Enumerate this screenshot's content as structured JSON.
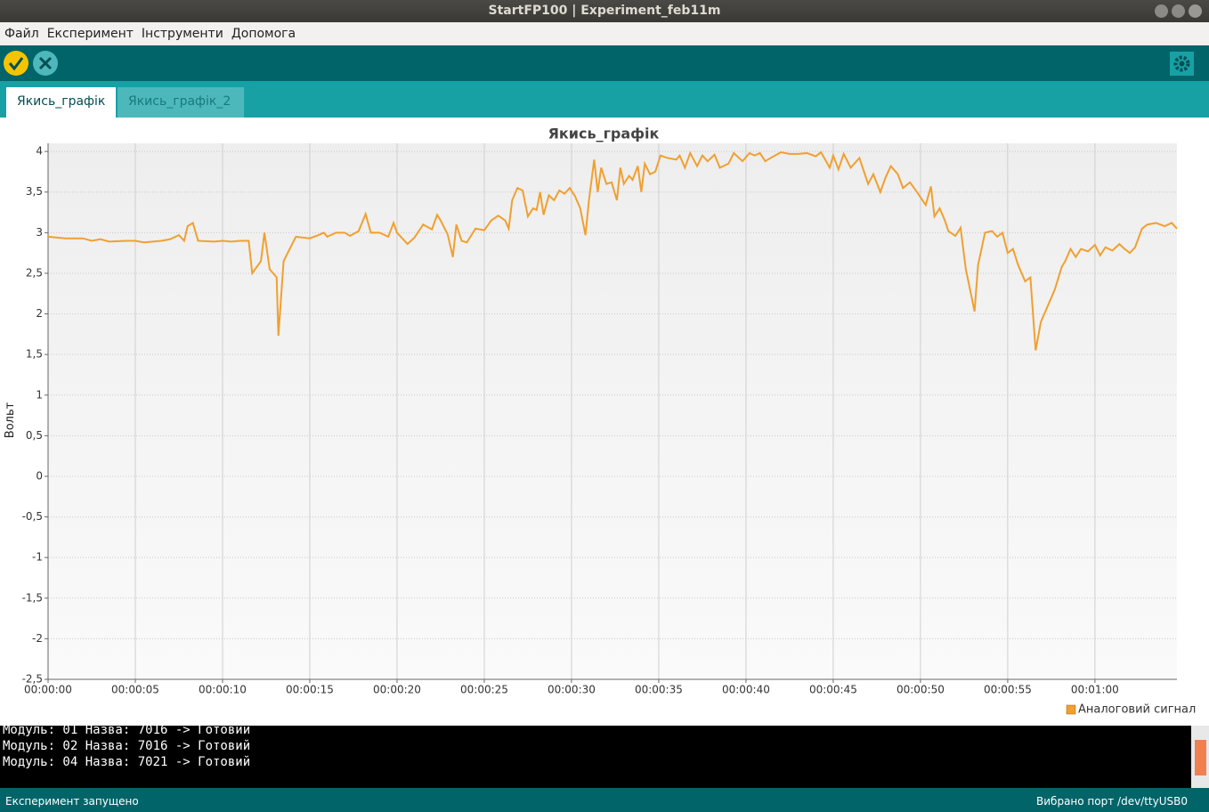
{
  "window": {
    "title": "StartFP100 | Experiment_feb11m"
  },
  "menu": [
    "Файл",
    "Експеримент",
    "Інструменти",
    "Допомога"
  ],
  "tabs": [
    "Якись_графік",
    "Якись_графік_2"
  ],
  "chart_data": {
    "type": "line",
    "title": "Якись_графік",
    "y_label": "Вольт",
    "x": [
      0,
      1,
      2,
      2.5,
      3,
      3.5,
      4.5,
      5,
      5.5,
      6.5,
      7,
      7.5,
      7.8,
      8,
      8.3,
      8.6,
      9.5,
      10,
      10.5,
      11,
      11.5,
      11.7,
      12.2,
      12.4,
      12.7,
      13.1,
      13.2,
      13.5,
      14.2,
      15,
      15.5,
      15.8,
      16,
      16.5,
      17,
      17.3,
      17.8,
      18.2,
      18.5,
      19,
      19.5,
      19.8,
      20,
      20.6,
      21,
      21.5,
      22,
      22.3,
      22.5,
      22.9,
      23.2,
      23.4,
      23.7,
      24,
      24.5,
      25,
      25.4,
      25.8,
      26.2,
      26.4,
      26.6,
      26.9,
      27.2,
      27.5,
      27.8,
      28,
      28.2,
      28.4,
      28.7,
      29,
      29.3,
      29.6,
      29.9,
      30.2,
      30.5,
      30.8,
      31,
      31.3,
      31.5,
      31.7,
      32,
      32.3,
      32.6,
      32.8,
      33,
      33.3,
      33.5,
      33.8,
      34,
      34.2,
      34.5,
      34.8,
      35.1,
      35.5,
      36,
      36.2,
      36.5,
      36.8,
      37.2,
      37.5,
      37.8,
      38.2,
      38.5,
      39,
      39.3,
      39.8,
      40.2,
      40.5,
      40.8,
      41.1,
      41.5,
      42,
      42.5,
      43,
      43.5,
      44,
      44.3,
      44.8,
      45,
      45.3,
      45.6,
      46,
      46.5,
      47,
      47.3,
      47.7,
      48,
      48.3,
      48.7,
      49,
      49.4,
      49.8,
      50.3,
      50.6,
      50.8,
      51.1,
      51.4,
      51.6,
      52,
      52.3,
      52.6,
      53.1,
      53.3,
      53.7,
      54.1,
      54.4,
      54.7,
      55,
      55.3,
      55.6,
      56,
      56.3,
      56.6,
      56.9,
      57.3,
      57.7,
      58.1,
      58.3,
      58.6,
      58.9,
      59.2,
      59.6,
      60,
      60.3,
      60.6,
      61,
      61.4,
      61.7,
      62,
      62.3,
      62.7,
      63,
      63.5,
      64,
      64.4,
      64.7
    ],
    "series": [
      {
        "name": "Аналоговий сигнал",
        "color": "#f0a030",
        "values": [
          2.95,
          2.93,
          2.93,
          2.9,
          2.92,
          2.89,
          2.9,
          2.9,
          2.88,
          2.9,
          2.92,
          2.97,
          2.9,
          3.08,
          3.12,
          2.9,
          2.89,
          2.9,
          2.89,
          2.9,
          2.9,
          2.5,
          2.65,
          3.0,
          2.55,
          2.45,
          1.73,
          2.65,
          2.95,
          2.93,
          2.97,
          3.0,
          2.95,
          3.0,
          3.0,
          2.96,
          3.02,
          3.23,
          3.0,
          3.0,
          2.95,
          3.12,
          3.0,
          2.86,
          2.94,
          3.1,
          3.04,
          3.22,
          3.15,
          2.98,
          2.7,
          3.1,
          2.9,
          2.88,
          3.05,
          3.03,
          3.15,
          3.21,
          3.15,
          3.05,
          3.4,
          3.55,
          3.52,
          3.2,
          3.3,
          3.28,
          3.5,
          3.22,
          3.46,
          3.4,
          3.52,
          3.48,
          3.55,
          3.45,
          3.3,
          2.97,
          3.4,
          3.9,
          3.5,
          3.8,
          3.6,
          3.62,
          3.4,
          3.8,
          3.6,
          3.7,
          3.65,
          3.82,
          3.5,
          3.85,
          3.72,
          3.75,
          3.95,
          3.92,
          3.9,
          3.95,
          3.8,
          3.98,
          3.82,
          3.95,
          3.88,
          3.96,
          3.8,
          3.85,
          3.98,
          3.88,
          3.98,
          3.95,
          3.98,
          3.88,
          3.93,
          3.99,
          3.97,
          3.97,
          3.98,
          3.94,
          3.99,
          3.8,
          3.95,
          3.78,
          3.97,
          3.8,
          3.92,
          3.6,
          3.72,
          3.5,
          3.68,
          3.82,
          3.72,
          3.55,
          3.62,
          3.5,
          3.34,
          3.57,
          3.2,
          3.3,
          3.15,
          3.02,
          2.96,
          3.06,
          2.55,
          2.03,
          2.6,
          3.0,
          3.02,
          2.95,
          3.0,
          2.75,
          2.8,
          2.6,
          2.4,
          2.45,
          1.55,
          1.9,
          2.1,
          2.3,
          2.58,
          2.65,
          2.8,
          2.7,
          2.8,
          2.77,
          2.85,
          2.72,
          2.82,
          2.78,
          2.86,
          2.8,
          2.75,
          2.82,
          3.05,
          3.1,
          3.12,
          3.08,
          3.12,
          3.05
        ]
      }
    ],
    "xlim": [
      0,
      64.7
    ],
    "ylim": [
      -2.5,
      4.1
    ],
    "xticks": [
      {
        "value": 0,
        "label": "00:00:00"
      },
      {
        "value": 5,
        "label": "00:00:05"
      },
      {
        "value": 10,
        "label": "00:00:10"
      },
      {
        "value": 15,
        "label": "00:00:15"
      },
      {
        "value": 20,
        "label": "00:00:20"
      },
      {
        "value": 25,
        "label": "00:00:25"
      },
      {
        "value": 30,
        "label": "00:00:30"
      },
      {
        "value": 35,
        "label": "00:00:35"
      },
      {
        "value": 40,
        "label": "00:00:40"
      },
      {
        "value": 45,
        "label": "00:00:45"
      },
      {
        "value": 50,
        "label": "00:00:50"
      },
      {
        "value": 55,
        "label": "00:00:55"
      },
      {
        "value": 60,
        "label": "00:01:00"
      }
    ],
    "yticks": [
      {
        "value": -2.5,
        "label": "-2,5"
      },
      -2,
      {
        "value": -1.5,
        "label": "-1,5"
      },
      -1,
      {
        "value": -0.5,
        "label": "-0,5"
      },
      0,
      {
        "value": 0.5,
        "label": "0,5"
      },
      1,
      {
        "value": 1.5,
        "label": "1,5"
      },
      2,
      {
        "value": 2.5,
        "label": "2,5"
      },
      3,
      {
        "value": 3.5,
        "label": "3,5"
      },
      4
    ],
    "grid": true,
    "legend": "bottom-right"
  },
  "console": [
    "Модуль: 01 Назва: 7016 -> Готовий",
    "Модуль: 02 Назва: 7016 -> Готовий",
    "Модуль: 04 Назва: 7021 -> Готовий"
  ],
  "status": {
    "left": "Експеримент запущено",
    "right": "Вибрано порт /dev/ttyUSB0"
  }
}
